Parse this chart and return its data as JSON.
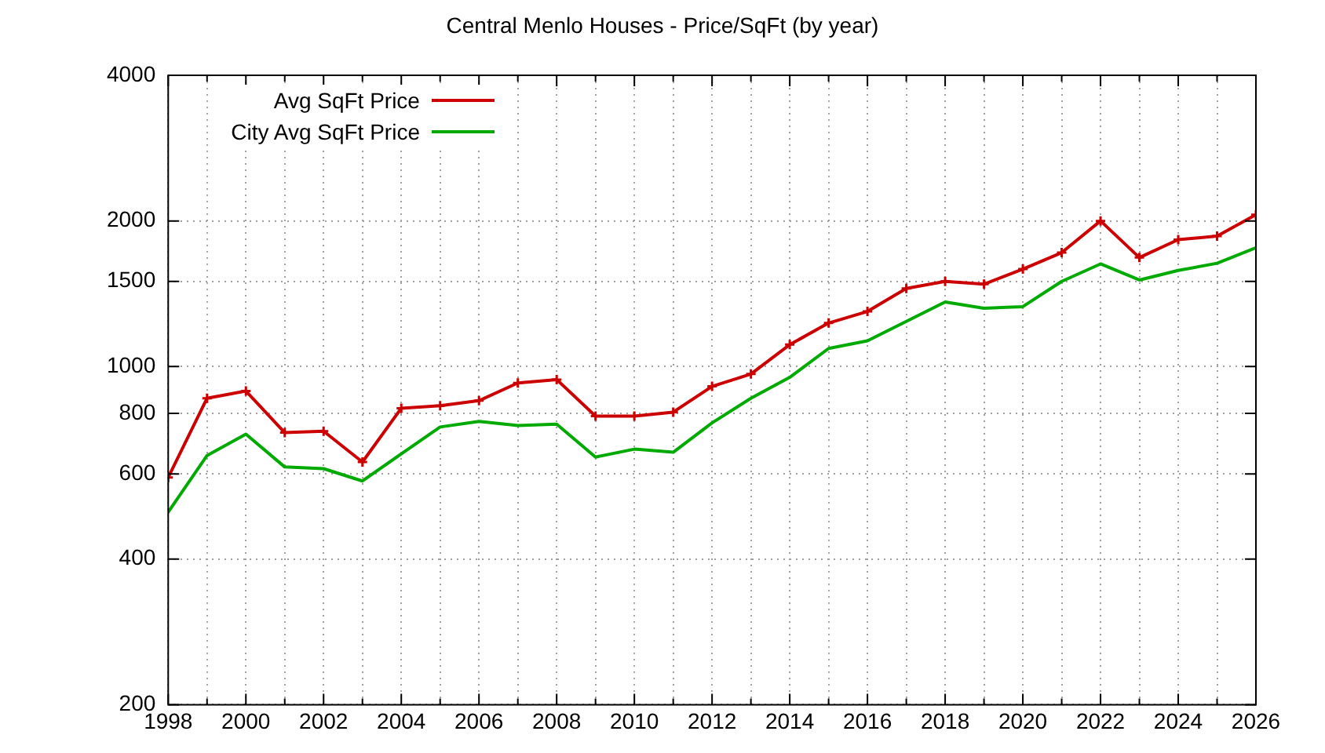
{
  "chart_data": {
    "type": "line",
    "title": "Central Menlo Houses - Price/SqFt (by year)",
    "x": [
      1998,
      1999,
      2000,
      2001,
      2002,
      2003,
      2004,
      2005,
      2006,
      2007,
      2008,
      2009,
      2010,
      2011,
      2012,
      2013,
      2014,
      2015,
      2016,
      2017,
      2018,
      2019,
      2020,
      2021,
      2022,
      2023,
      2024,
      2025,
      2026
    ],
    "series": [
      {
        "name": "Avg SqFt Price",
        "color": "#cc0000",
        "marker": "cross",
        "values": [
          590,
          860,
          890,
          730,
          735,
          635,
          820,
          830,
          850,
          925,
          940,
          790,
          790,
          805,
          910,
          965,
          1110,
          1230,
          1300,
          1450,
          1500,
          1480,
          1590,
          1720,
          2000,
          1680,
          1830,
          1860,
          2060
        ]
      },
      {
        "name": "City Avg SqFt Price",
        "color": "#00aa00",
        "marker": "none",
        "values": [
          500,
          655,
          725,
          620,
          615,
          580,
          660,
          750,
          770,
          755,
          760,
          650,
          675,
          665,
          765,
          860,
          950,
          1090,
          1130,
          1240,
          1360,
          1320,
          1330,
          1500,
          1630,
          1510,
          1580,
          1635,
          1760
        ]
      }
    ],
    "xlim": [
      1998,
      2026
    ],
    "xticks": [
      1998,
      {
        "value": 1999,
        "label": null
      },
      2000,
      {
        "value": 2001,
        "label": null
      },
      2002,
      {
        "value": 2003,
        "label": null
      },
      2004,
      {
        "value": 2005,
        "label": null
      },
      2006,
      {
        "value": 2007,
        "label": null
      },
      2008,
      {
        "value": 2009,
        "label": null
      },
      2010,
      {
        "value": 2011,
        "label": null
      },
      2012,
      {
        "value": 2013,
        "label": null
      },
      2014,
      {
        "value": 2015,
        "label": null
      },
      2016,
      {
        "value": 2017,
        "label": null
      },
      2018,
      {
        "value": 2019,
        "label": null
      },
      2020,
      {
        "value": 2021,
        "label": null
      },
      2022,
      {
        "value": 2023,
        "label": null
      },
      2024,
      {
        "value": 2025,
        "label": null
      },
      2026
    ],
    "ylim": [
      200,
      4000
    ],
    "yticks": [
      200,
      400,
      600,
      800,
      1000,
      1500,
      2000,
      4000
    ],
    "log": "y",
    "grid": true,
    "legend": "top left",
    "line_style": "solid"
  }
}
